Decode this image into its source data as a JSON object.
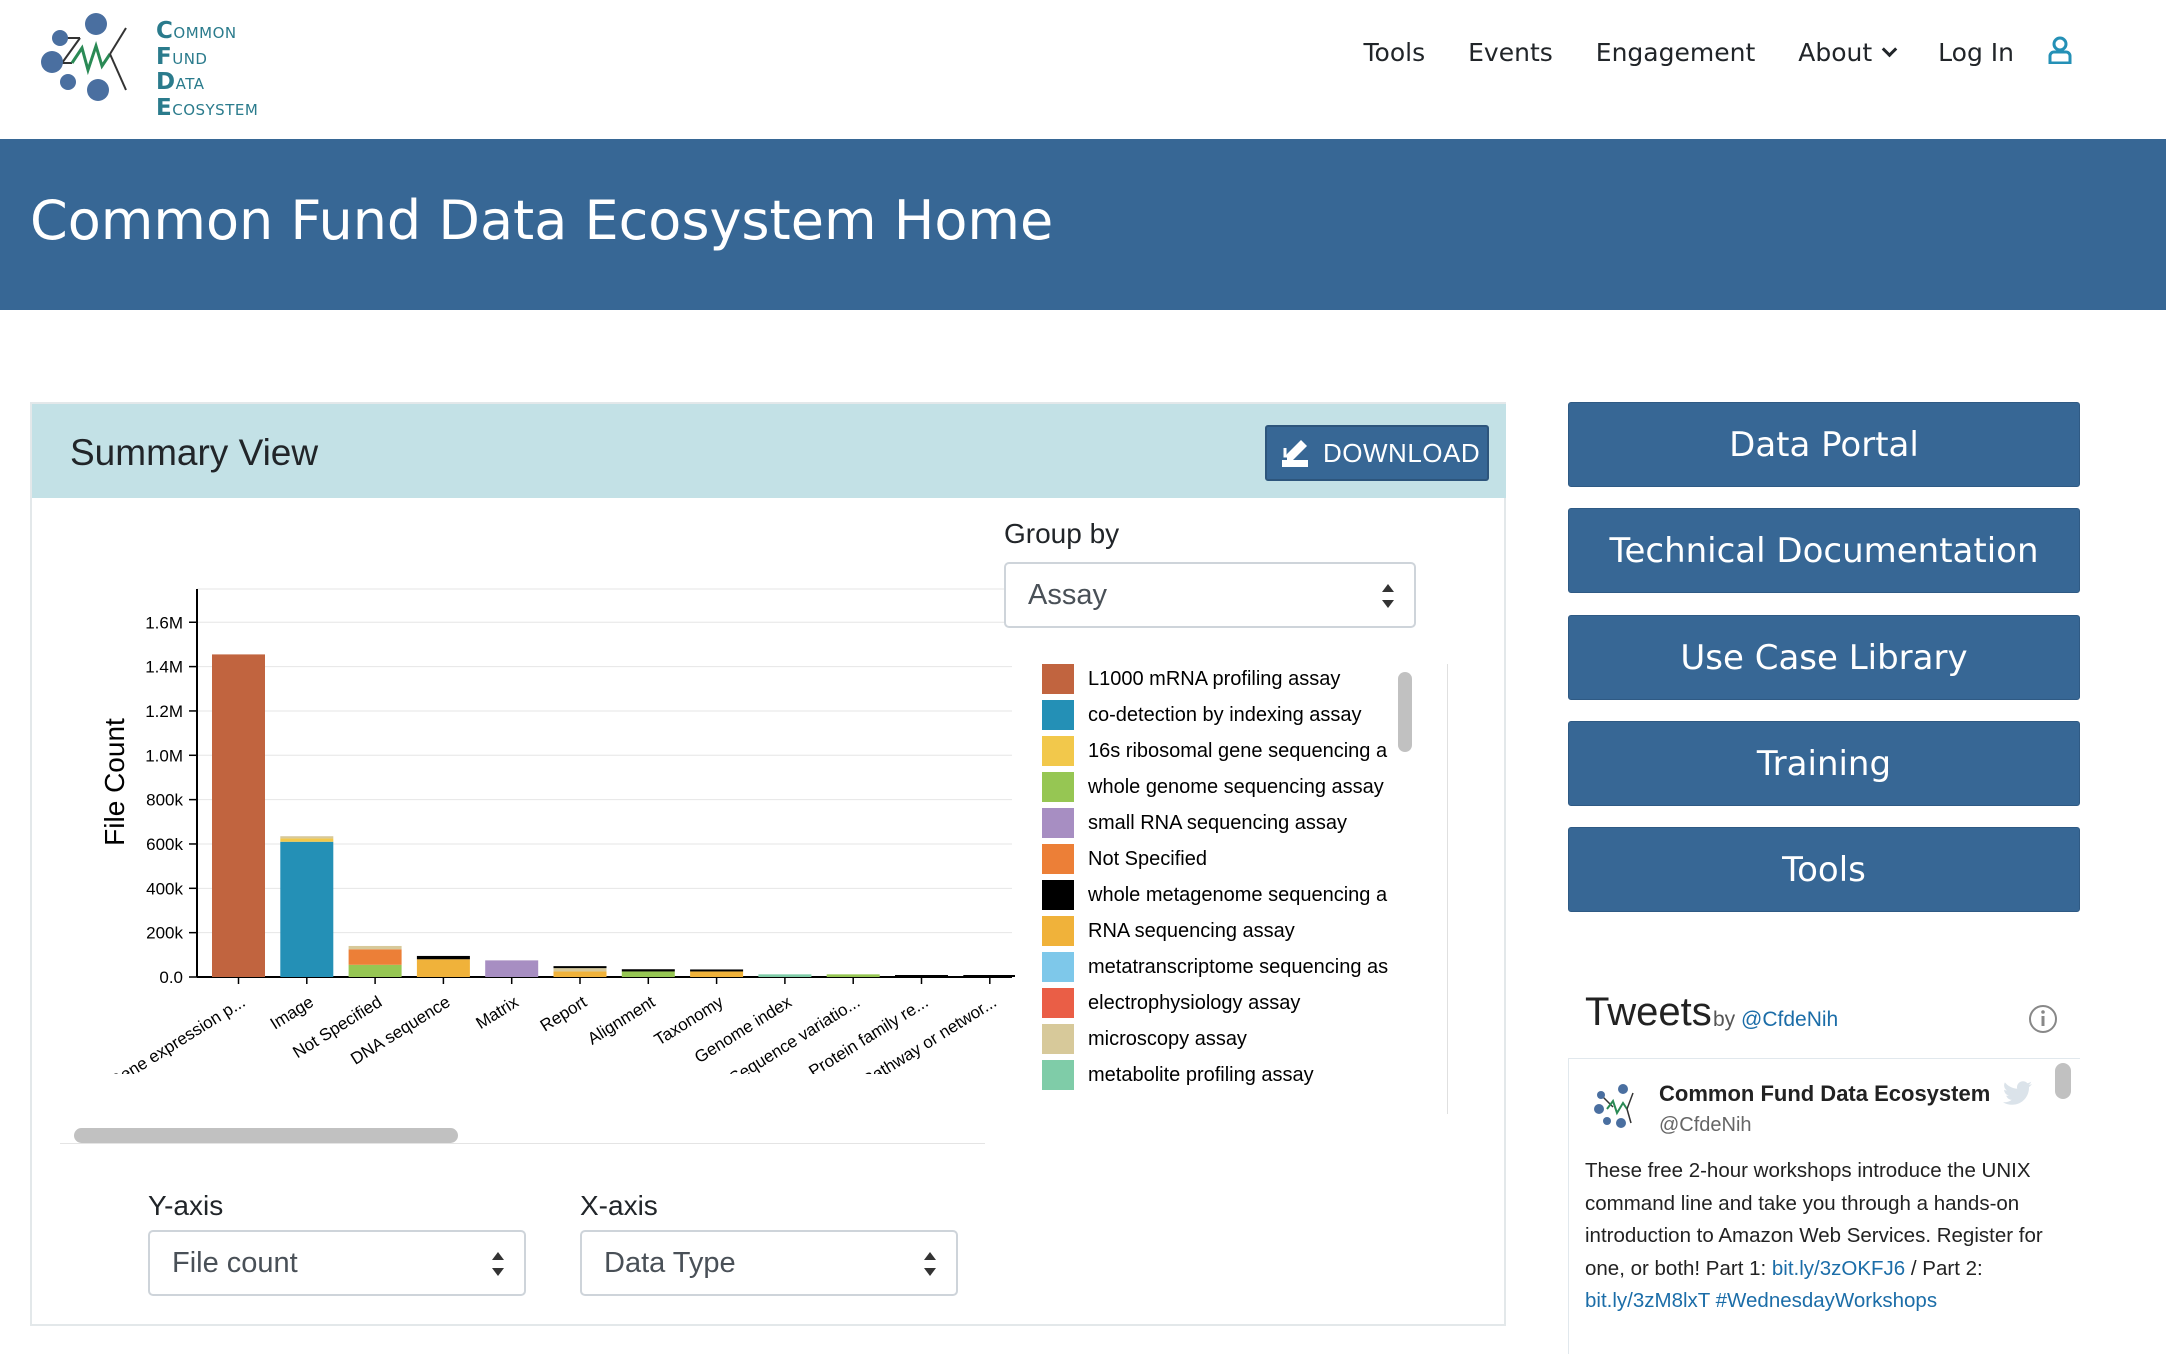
{
  "logo": {
    "line1_cap": "C",
    "line1_rest": "OMMON",
    "line2_cap": "F",
    "line2_rest": "UND",
    "line3_cap": "D",
    "line3_rest": "ATA",
    "line4_cap": "E",
    "line4_rest": "COSYSTEM"
  },
  "nav": {
    "tools": "Tools",
    "events": "Events",
    "engagement": "Engagement",
    "about": "About",
    "login": "Log In"
  },
  "hero": {
    "title": "Common Fund Data Ecosystem Home"
  },
  "summary": {
    "title": "Summary View",
    "download_label": "DOWNLOAD",
    "group_by_label": "Group by",
    "group_by_value": "Assay",
    "y_axis_label": "Y-axis",
    "y_axis_value": "File count",
    "x_axis_label": "X-axis",
    "x_axis_value": "Data Type"
  },
  "colors": {
    "primary": "#376795",
    "card_header": "#c3e1e6",
    "link": "#1b6da8"
  },
  "legend": [
    {
      "label": "L1000 mRNA profiling assay",
      "color": "#c1643f"
    },
    {
      "label": "co-detection by indexing assay",
      "color": "#2490b6"
    },
    {
      "label": "16s ribosomal gene sequencing a",
      "color": "#f2c84b"
    },
    {
      "label": "whole genome sequencing assay",
      "color": "#96c653"
    },
    {
      "label": "small RNA sequencing assay",
      "color": "#a78ec2"
    },
    {
      "label": "Not Specified",
      "color": "#ec7f37"
    },
    {
      "label": "whole metagenome sequencing a",
      "color": "#000000"
    },
    {
      "label": "RNA sequencing assay",
      "color": "#f0b23a"
    },
    {
      "label": "metatranscriptome sequencing as",
      "color": "#7ec8ea"
    },
    {
      "label": "electrophysiology assay",
      "color": "#ea5e46"
    },
    {
      "label": "microscopy assay",
      "color": "#d7c99a"
    },
    {
      "label": "metabolite profiling assay",
      "color": "#7fcca8"
    }
  ],
  "chart_data": {
    "type": "bar",
    "ylabel": "File Count",
    "xlabel": "",
    "ylim": [
      0,
      1750000
    ],
    "y_ticks": [
      {
        "value": 0,
        "label": "0.0"
      },
      {
        "value": 200000,
        "label": "200k"
      },
      {
        "value": 400000,
        "label": "400k"
      },
      {
        "value": 600000,
        "label": "600k"
      },
      {
        "value": 800000,
        "label": "800k"
      },
      {
        "value": 1000000,
        "label": "1.0M"
      },
      {
        "value": 1200000,
        "label": "1.2M"
      },
      {
        "value": 1400000,
        "label": "1.4M"
      },
      {
        "value": 1600000,
        "label": "1.6M"
      }
    ],
    "categories": [
      "Gene expression p...",
      "Image",
      "Not Specified",
      "DNA sequence",
      "Matrix",
      "Report",
      "Alignment",
      "Taxonomy",
      "Genome index",
      "Sequence variatio...",
      "Protein family re...",
      "Pathway or networ..."
    ],
    "stacks": [
      [
        {
          "assay": "L1000 mRNA profiling assay",
          "value": 1455000
        }
      ],
      [
        {
          "assay": "co-detection by indexing assay",
          "value": 610000
        },
        {
          "assay": "16s ribosomal gene sequencing a",
          "value": 15000
        },
        {
          "assay": "microscopy assay",
          "value": 10000
        }
      ],
      [
        {
          "assay": "whole genome sequencing assay",
          "value": 55000
        },
        {
          "assay": "Not Specified",
          "value": 70000
        },
        {
          "assay": "microscopy assay",
          "value": 15000
        }
      ],
      [
        {
          "assay": "RNA sequencing assay",
          "value": 80000
        },
        {
          "assay": "whole metagenome sequencing a",
          "value": 15000
        }
      ],
      [
        {
          "assay": "small RNA sequencing assay",
          "value": 75000
        }
      ],
      [
        {
          "assay": "RNA sequencing assay",
          "value": 25000
        },
        {
          "assay": "microscopy assay",
          "value": 15000
        },
        {
          "assay": "whole metagenome sequencing a",
          "value": 8000
        }
      ],
      [
        {
          "assay": "whole genome sequencing assay",
          "value": 25000
        },
        {
          "assay": "whole metagenome sequencing a",
          "value": 10000
        }
      ],
      [
        {
          "assay": "RNA sequencing assay",
          "value": 25000
        },
        {
          "assay": "whole metagenome sequencing a",
          "value": 8000
        }
      ],
      [
        {
          "assay": "metabolite profiling assay",
          "value": 12000
        }
      ],
      [
        {
          "assay": "whole genome sequencing assay",
          "value": 12000
        }
      ],
      [
        {
          "assay": "whole metagenome sequencing a",
          "value": 8000
        }
      ],
      [
        {
          "assay": "whole metagenome sequencing a",
          "value": 6000
        }
      ]
    ]
  },
  "side_buttons": [
    "Data Portal",
    "Technical Documentation",
    "Use Case Library",
    "Training",
    "Tools"
  ],
  "tweets": {
    "title": "Tweets",
    "by": "by",
    "handle_link": "@CfdeNih",
    "tweet": {
      "name": "Common Fund Data Ecosystem",
      "handle": "@CfdeNih",
      "text": "These free 2-hour workshops introduce the UNIX command line and take you through a hands-on introduction to Amazon Web Services. Register for one, or both! Part 1:",
      "link1": "bit.ly/3zOKFJ6",
      "sep": " / Part 2: ",
      "link2": "bit.ly/3zM8lxT",
      "hashtag": "#WednesdayWorkshops"
    }
  }
}
